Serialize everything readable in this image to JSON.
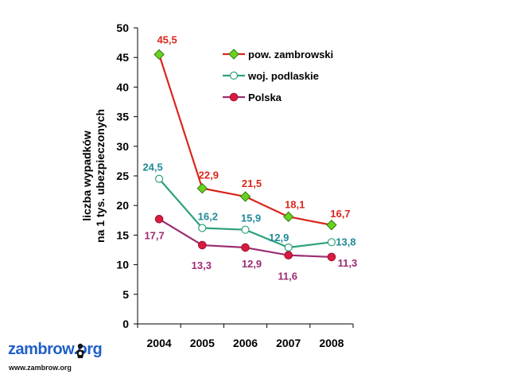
{
  "chart_data": {
    "type": "line",
    "x": [
      "2004",
      "2005",
      "2006",
      "2007",
      "2008"
    ],
    "ylim": [
      0,
      50
    ],
    "yticks": [
      "0",
      "5",
      "10",
      "15",
      "20",
      "25",
      "30",
      "35",
      "40",
      "45",
      "50"
    ],
    "ylabel_line1": "liczba wypadków",
    "ylabel_line2": "na 1 tys. ubezpieczonych",
    "legend_position": "top-right",
    "grid": false,
    "series": [
      {
        "name": "pow. zambrowski",
        "values": [
          45.5,
          22.9,
          21.5,
          18.1,
          16.7
        ],
        "labels": [
          "45,5",
          "22,9",
          "21,5",
          "18,1",
          "16,7"
        ],
        "line_color": "#d9261c",
        "label_color": "#d9261c",
        "marker": "diamond",
        "marker_fill": "#6ad21e"
      },
      {
        "name": "woj. podlaskie",
        "values": [
          24.5,
          16.2,
          15.9,
          12.9,
          13.8
        ],
        "labels": [
          "24,5",
          "16,2",
          "15,9",
          "12,9",
          "13,8"
        ],
        "line_color": "#2ea27a",
        "label_color": "#1f8a98",
        "marker": "circle-open",
        "marker_fill": "#ffffff"
      },
      {
        "name": "Polska",
        "values": [
          17.7,
          13.3,
          12.9,
          11.6,
          11.3
        ],
        "labels": [
          "17,7",
          "13,3",
          "12,9",
          "11,6",
          "11,3"
        ],
        "line_color": "#9b2d72",
        "label_color": "#9b2d72",
        "marker": "circle-filled",
        "marker_fill": "#d81b3e"
      }
    ]
  },
  "logo": {
    "name": "zambrow.org",
    "url": "www.zambrow.org",
    "color": "#1f5fc8"
  }
}
